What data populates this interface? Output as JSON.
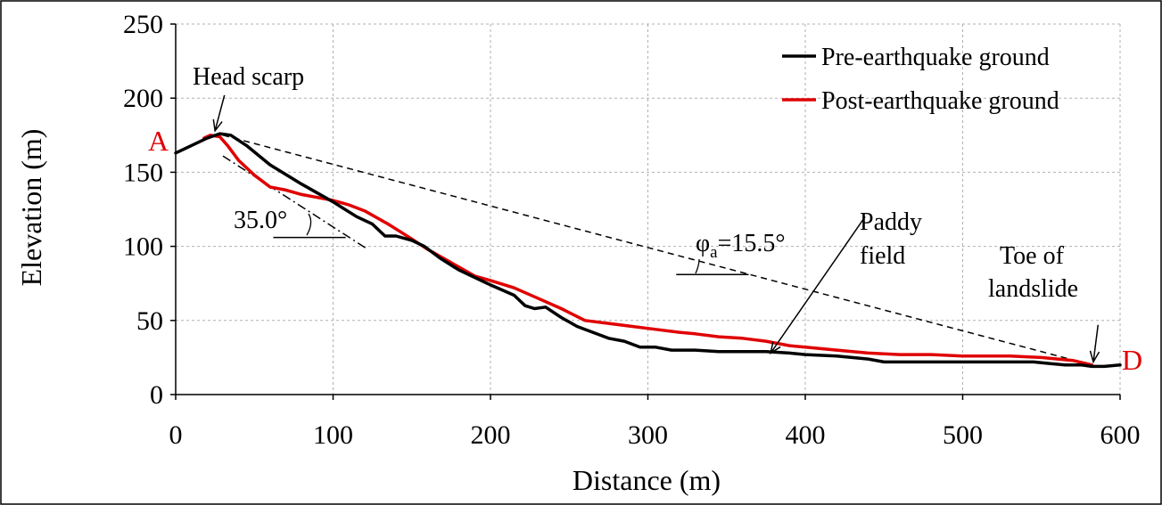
{
  "chart_data": {
    "type": "line",
    "xlabel": "Distance (m)",
    "ylabel": "Elevation (m)",
    "xlim": [
      0,
      600
    ],
    "ylim": [
      0,
      250
    ],
    "xticks": [
      0,
      100,
      200,
      300,
      400,
      500,
      600
    ],
    "yticks": [
      0,
      50,
      100,
      150,
      200,
      250
    ],
    "grid": true,
    "legend_position": "top-right",
    "colors": {
      "pre": "#000000",
      "post": "#e00000"
    },
    "series": [
      {
        "name": "Pre-earthquake ground",
        "color": "#000000",
        "x": [
          0,
          10,
          20,
          28,
          35,
          45,
          60,
          80,
          100,
          115,
          125,
          133,
          140,
          150,
          158,
          168,
          180,
          190,
          200,
          215,
          222,
          228,
          235,
          245,
          255,
          265,
          275,
          285,
          295,
          305,
          315,
          330,
          345,
          360,
          375,
          390,
          400,
          420,
          440,
          450,
          460,
          500,
          530,
          545,
          555,
          565,
          575,
          582,
          590,
          600
        ],
        "y": [
          163,
          168,
          173,
          176,
          175,
          168,
          155,
          142,
          130,
          120,
          115,
          107,
          107,
          104,
          100,
          92,
          84,
          79,
          74,
          67,
          60,
          58,
          59,
          52,
          46,
          42,
          38,
          36,
          32,
          32,
          30,
          30,
          29,
          29,
          29,
          28,
          27,
          26,
          24,
          22,
          22,
          22,
          22,
          22,
          21,
          20,
          20,
          19,
          19,
          20
        ]
      },
      {
        "name": "Post-earthquake ground",
        "color": "#e00000",
        "x": [
          18,
          22,
          28,
          33,
          40,
          50,
          60,
          70,
          80,
          90,
          100,
          110,
          120,
          135,
          150,
          160,
          170,
          180,
          190,
          200,
          215,
          230,
          245,
          260,
          275,
          290,
          305,
          320,
          330,
          345,
          360,
          375,
          390,
          400,
          420,
          440,
          460,
          480,
          500,
          530,
          550,
          570,
          582
        ],
        "y": [
          173,
          175,
          174,
          168,
          158,
          148,
          140,
          138,
          135,
          133,
          131,
          128,
          124,
          115,
          105,
          98,
          92,
          86,
          80,
          77,
          72,
          65,
          58,
          50,
          48,
          46,
          44,
          42,
          41,
          39,
          38,
          36,
          33,
          32,
          30,
          28,
          27,
          27,
          26,
          26,
          25,
          23,
          20
        ]
      }
    ],
    "reference_lines": [
      {
        "kind": "dashed",
        "x": [
          30,
          582
        ],
        "y": [
          175,
          20
        ]
      },
      {
        "kind": "dash-dot",
        "x": [
          30,
          122
        ],
        "y": [
          161,
          98
        ]
      },
      {
        "kind": "solid",
        "x": [
          62,
          108
        ],
        "y": [
          106,
          106
        ]
      },
      {
        "kind": "solid",
        "x": [
          318,
          364
        ],
        "y": [
          81,
          81
        ]
      }
    ],
    "arrows": [
      {
        "from": [
          31,
          202
        ],
        "to": [
          25,
          178
        ]
      },
      {
        "from": [
          438,
          120
        ],
        "to": [
          378,
          28
        ]
      },
      {
        "from": [
          586,
          47
        ],
        "to": [
          583,
          22
        ]
      }
    ],
    "annotations": [
      {
        "name": "head-scarp-label",
        "text": "Head scarp"
      },
      {
        "name": "paddy-field-label-1",
        "text": "Paddy"
      },
      {
        "name": "paddy-field-label-2",
        "text": "field"
      },
      {
        "name": "toe-label-1",
        "text": "Toe of"
      },
      {
        "name": "toe-label-2",
        "text": "landslide"
      },
      {
        "name": "angle-35-label",
        "text": "35.0°"
      },
      {
        "name": "point-a-label",
        "text": "A"
      },
      {
        "name": "point-d-label",
        "text": "D"
      }
    ],
    "phi_label": {
      "symbol": "φ",
      "subscript": "a",
      "value": "=15.5°"
    }
  }
}
